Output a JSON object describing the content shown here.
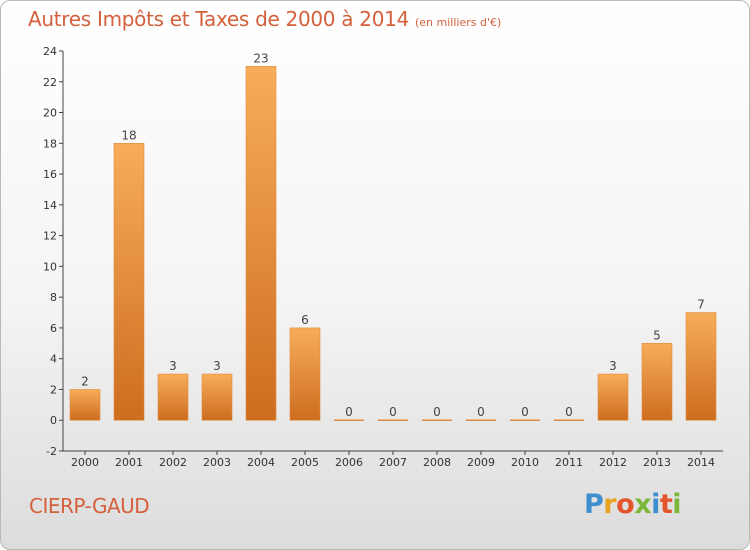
{
  "header": {
    "title": "Autres Impôts et Taxes de 2000 à 2014",
    "unit": "(en milliers d'€)"
  },
  "footer": {
    "commune": "CIERP-GAUD",
    "logo": {
      "text": "Proxiti",
      "colors": [
        "#3f8fcf",
        "#e9a21f",
        "#e2552c",
        "#7ab73a",
        "#3f8fcf",
        "#e2552c",
        "#7ab73a"
      ]
    }
  },
  "colors": {
    "accent": "#d4603c",
    "bar_light": "#f5a855",
    "bar_dark": "#cf7020"
  },
  "chart_data": {
    "type": "bar",
    "categories": [
      "2000",
      "2001",
      "2002",
      "2003",
      "2004",
      "2005",
      "2006",
      "2007",
      "2008",
      "2009",
      "2010",
      "2011",
      "2012",
      "2013",
      "2014"
    ],
    "values": [
      2,
      18,
      3,
      3,
      23,
      6,
      0,
      0,
      0,
      0,
      0,
      0,
      3,
      5,
      7
    ],
    "ylim": [
      -2,
      24
    ],
    "yticks": [
      -2,
      0,
      2,
      4,
      6,
      8,
      10,
      12,
      14,
      16,
      18,
      20,
      22,
      24
    ],
    "grid": false
  }
}
